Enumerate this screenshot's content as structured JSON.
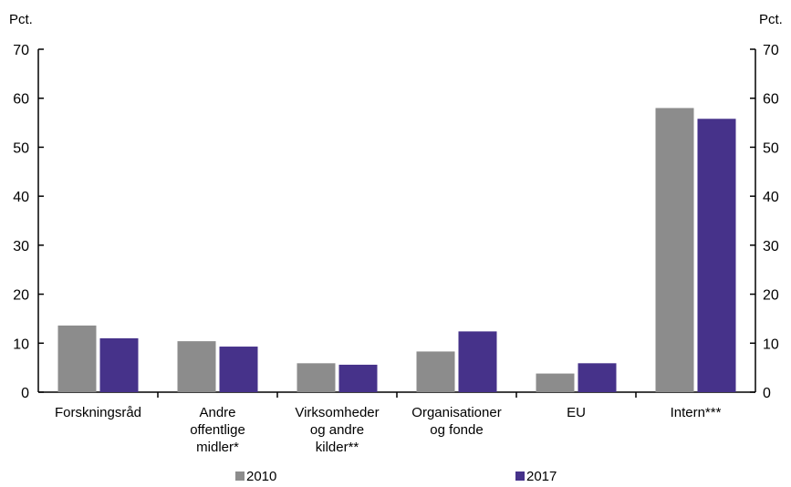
{
  "chart_data": {
    "type": "bar",
    "y_unit_left": "Pct.",
    "y_unit_right": "Pct.",
    "ylim": [
      0,
      70
    ],
    "yticks": [
      0,
      10,
      20,
      30,
      40,
      50,
      60,
      70
    ],
    "grid": false,
    "legend_position": "bottom",
    "categories": [
      [
        "Forskningsråd"
      ],
      [
        "Andre",
        "offentlige",
        "midler*"
      ],
      [
        "Virksomheder",
        "og andre",
        "kilder**"
      ],
      [
        "Organisationer",
        "og fonde"
      ],
      [
        "EU"
      ],
      [
        "Intern***"
      ]
    ],
    "series": [
      {
        "name": "2010",
        "color": "#8c8c8c",
        "values": [
          13.6,
          10.4,
          5.9,
          8.3,
          3.8,
          58.0
        ]
      },
      {
        "name": "2017",
        "color": "#46328a",
        "values": [
          11.0,
          9.3,
          5.6,
          12.4,
          5.9,
          55.8
        ]
      }
    ]
  }
}
